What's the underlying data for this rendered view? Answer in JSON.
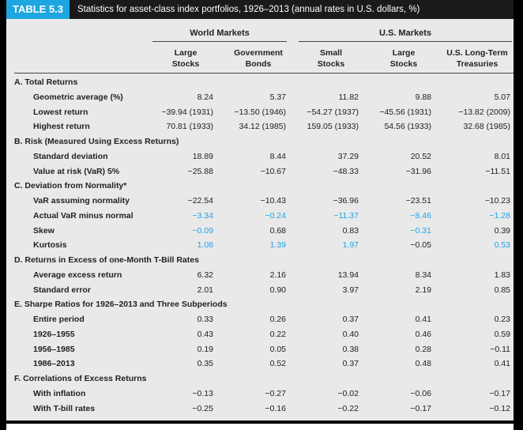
{
  "header": {
    "tag": "TABLE 5.3",
    "caption": "Statistics for asset-class index portfolios, 1926–2013 (annual rates in U.S. dollars, %)"
  },
  "groups": [
    "World Markets",
    "U.S. Markets"
  ],
  "columns": [
    [
      "Large",
      "Stocks"
    ],
    [
      "Government",
      "Bonds"
    ],
    [
      "Small",
      "Stocks"
    ],
    [
      "Large",
      "Stocks"
    ],
    [
      "U.S. Long-Term",
      "Treasuries"
    ]
  ],
  "colors": {
    "accent": "#1ea6e0",
    "highlight": "#1fa3e8"
  },
  "rows": [
    {
      "section": "A. Total Returns"
    },
    {
      "label": "Geometric average (%)",
      "values": [
        "8.24",
        "5.37",
        "11.82",
        "9.88",
        "5.07"
      ]
    },
    {
      "label": "Lowest return",
      "values": [
        "−39.94 (1931)",
        "−13.50 (1946)",
        "−54.27 (1937)",
        "−45.56 (1931)",
        "−13.82 (2009)"
      ]
    },
    {
      "label": "Highest return",
      "values": [
        "70.81 (1933)",
        "34.12 (1985)",
        "159.05 (1933)",
        "54.56 (1933)",
        "32.68 (1985)"
      ]
    },
    {
      "section": "B. Risk (Measured Using Excess Returns)"
    },
    {
      "label": "Standard deviation",
      "values": [
        "18.89",
        "8.44",
        "37.29",
        "20.52",
        "8.01"
      ]
    },
    {
      "label": "Value at risk (VaR) 5%",
      "values": [
        "−25.88",
        "−10.67",
        "−48.33",
        "−31.96",
        "−11.51"
      ]
    },
    {
      "section": "C. Deviation from Normality*"
    },
    {
      "label": "VaR assuming normality",
      "values": [
        "−22.54",
        "−10.43",
        "−36.96",
        "−23.51",
        "−10.23"
      ]
    },
    {
      "label": "Actual VaR minus normal",
      "values": [
        "−3.34",
        "−0.24",
        "−11.37",
        "−8.46",
        "−1.28"
      ],
      "highlight": [
        1,
        1,
        1,
        1,
        1
      ]
    },
    {
      "label": "Skew",
      "values": [
        "−0.09",
        "0.68",
        "0.83",
        "−0.31",
        "0.39"
      ],
      "highlight": [
        1,
        0,
        0,
        1,
        0
      ]
    },
    {
      "label": "Kurtosis",
      "values": [
        "1.08",
        "1.39",
        "1.97",
        "−0.05",
        "0.53"
      ],
      "highlight": [
        1,
        1,
        1,
        0,
        1
      ]
    },
    {
      "section": "D. Returns in Excess of one-Month T-Bill Rates"
    },
    {
      "label": "Average excess return",
      "values": [
        "6.32",
        "2.16",
        "13.94",
        "8.34",
        "1.83"
      ]
    },
    {
      "label": "Standard error",
      "values": [
        "2.01",
        "0.90",
        "3.97",
        "2.19",
        "0.85"
      ]
    },
    {
      "section": "E. Sharpe Ratios for 1926–2013 and Three Subperiods"
    },
    {
      "label": "Entire period",
      "values": [
        "0.33",
        "0.26",
        "0.37",
        "0.41",
        "0.23"
      ]
    },
    {
      "label": "1926–1955",
      "values": [
        "0.43",
        "0.22",
        "0.40",
        "0.46",
        "0.59"
      ]
    },
    {
      "label": "1956–1985",
      "values": [
        "0.19",
        "0.05",
        "0.38",
        "0.28",
        "−0.11"
      ]
    },
    {
      "label": "1986–2013",
      "values": [
        "0.35",
        "0.52",
        "0.37",
        "0.48",
        "0.41"
      ]
    },
    {
      "section": "F. Correlations of Excess Returns"
    },
    {
      "label": "With inflation",
      "values": [
        "−0.13",
        "−0.27",
        "−0.02",
        "−0.06",
        "−0.17"
      ]
    },
    {
      "label": "With T-bill rates",
      "values": [
        "−0.25",
        "−0.16",
        "−0.22",
        "−0.17",
        "−0.12"
      ]
    }
  ]
}
